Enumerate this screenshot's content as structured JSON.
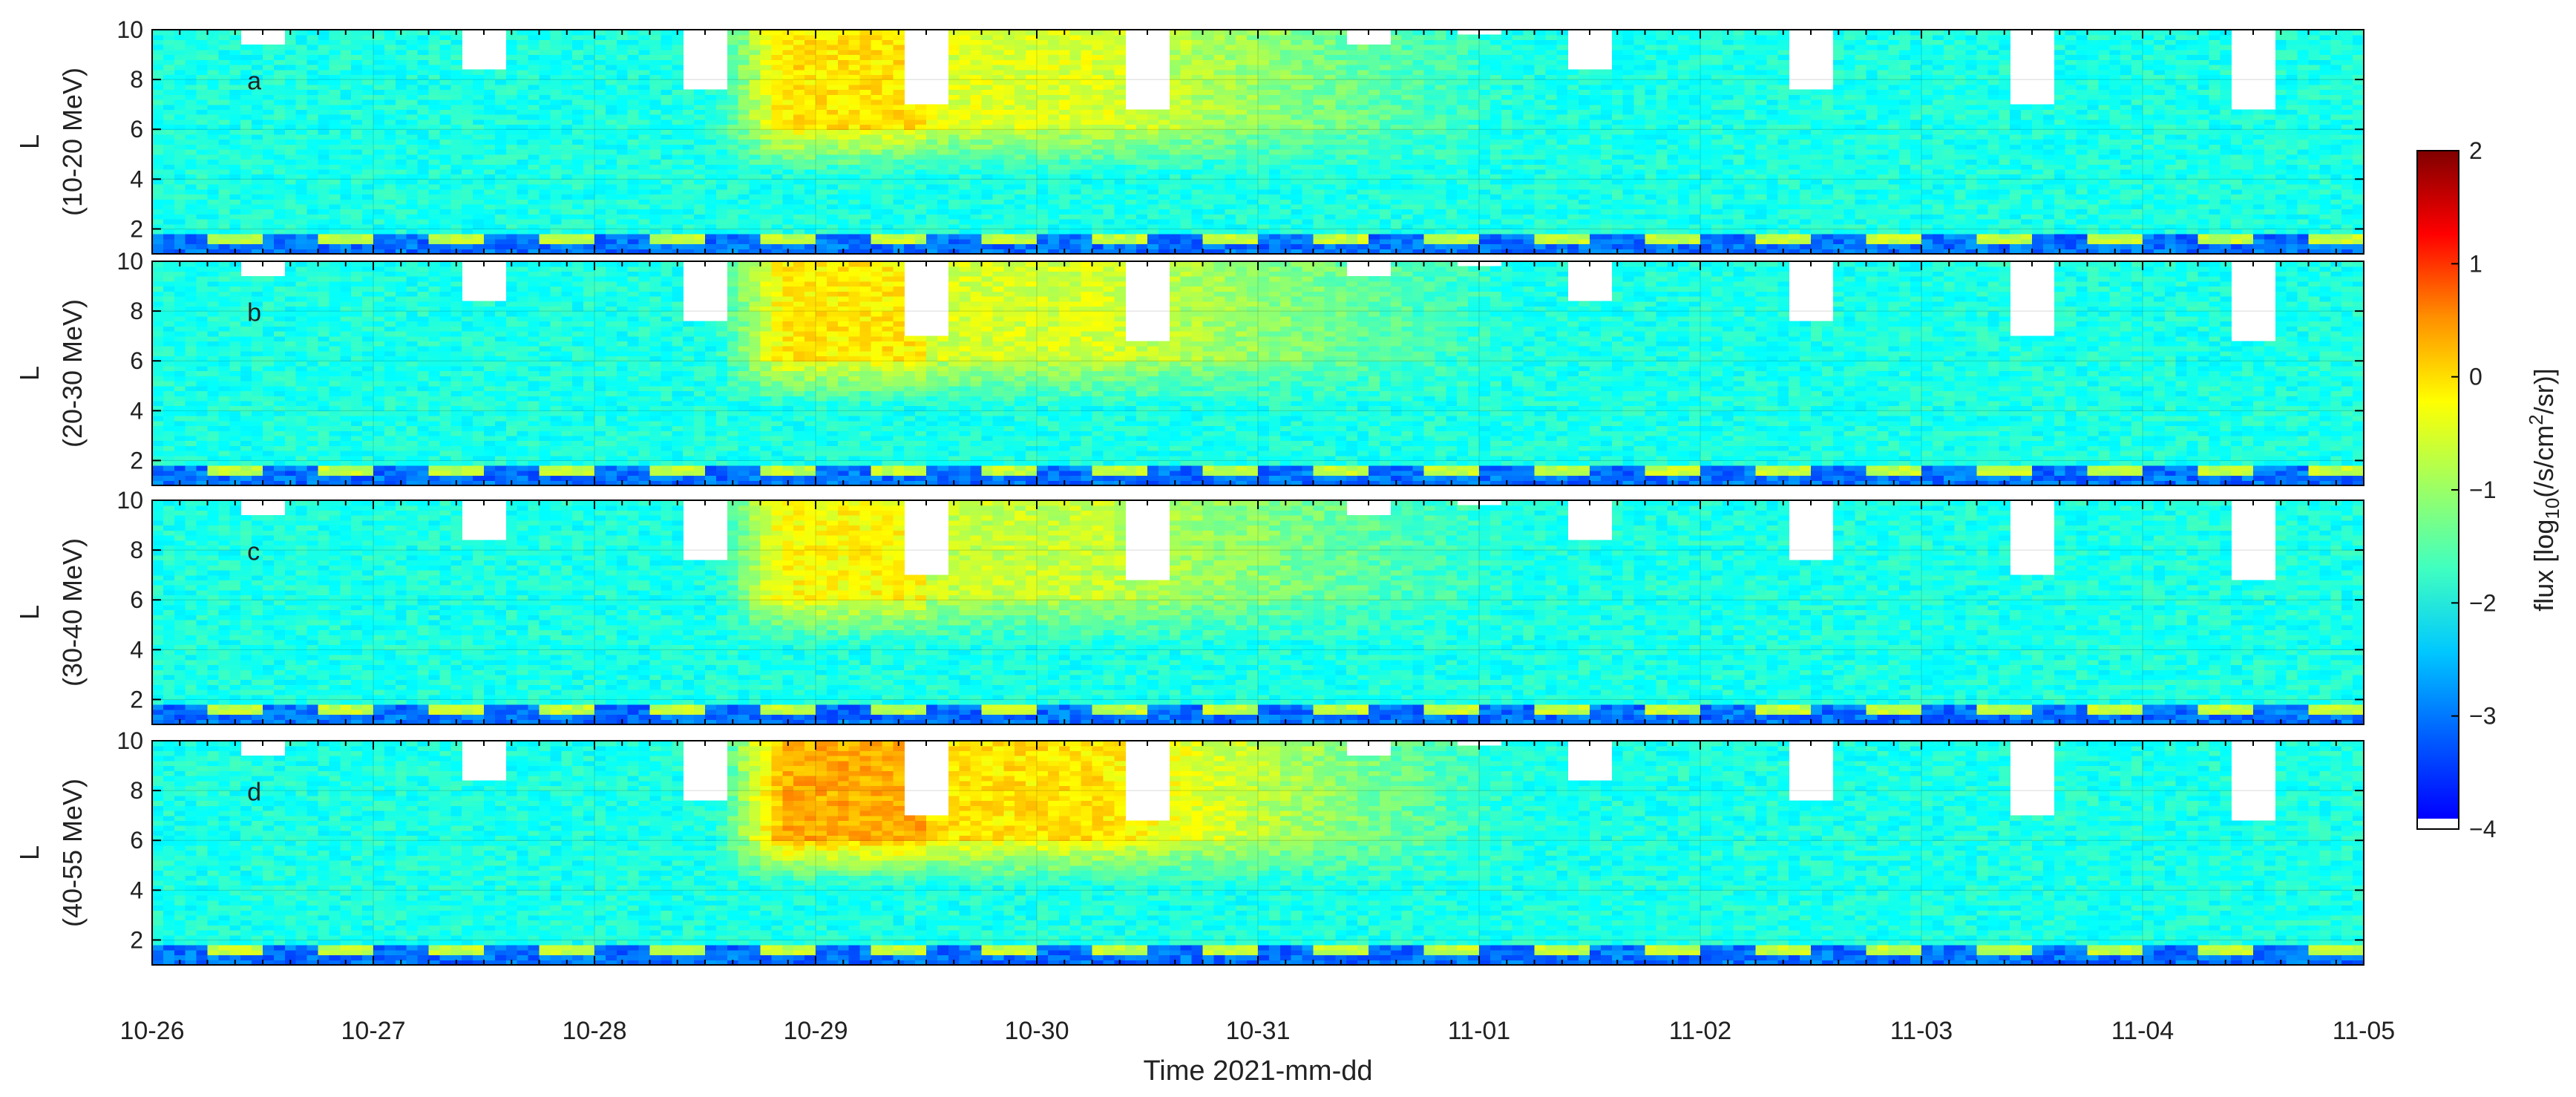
{
  "chart_data": {
    "type": "heatmap",
    "x_axis": {
      "label": "Time 2021-mm-dd",
      "tick_labels": [
        "10-26",
        "10-27",
        "10-28",
        "10-29",
        "10-30",
        "10-31",
        "11-01",
        "11-02",
        "11-03",
        "11-04",
        "11-05"
      ],
      "range_days": [
        0,
        10
      ]
    },
    "y_axis": {
      "label": "L",
      "range": [
        1,
        10
      ],
      "tick_values": [
        2,
        4,
        6,
        8,
        10
      ],
      "tick_labels": [
        "2",
        "4",
        "6",
        "8",
        "10"
      ]
    },
    "panels": [
      {
        "letter": "a",
        "energy": "(10-20 MeV)",
        "peak_log_flux": -0.1
      },
      {
        "letter": "b",
        "energy": "(20-30 MeV)",
        "peak_log_flux": -0.15
      },
      {
        "letter": "c",
        "energy": "(30-40 MeV)",
        "peak_log_flux": -0.25
      },
      {
        "letter": "d",
        "energy": "(40-55 MeV)",
        "peak_log_flux": 0.25
      }
    ],
    "colorbar": {
      "label_prefix": "flux [log",
      "label_sub": "10",
      "label_mid": "(/s/cm",
      "label_sup": "2",
      "label_suffix": "/sr)]",
      "range": [
        -4,
        2
      ],
      "tick_values": [
        2,
        1,
        0,
        -1,
        -2,
        -3,
        -4
      ],
      "tick_labels": [
        "2",
        "1",
        "0",
        "−1",
        "−2",
        "−3",
        "−4"
      ]
    },
    "data_gaps": [
      {
        "day": 0.5,
        "L_from": 9.3,
        "L_to": 10
      },
      {
        "day": 1.5,
        "L_from": 8.3,
        "L_to": 10
      },
      {
        "day": 2.5,
        "L_from": 7.6,
        "L_to": 10
      },
      {
        "day": 3.5,
        "L_from": 6.9,
        "L_to": 10
      },
      {
        "day": 4.5,
        "L_from": 6.7,
        "L_to": 10
      },
      {
        "day": 5.5,
        "L_from": 9.3,
        "L_to": 10
      },
      {
        "day": 6.0,
        "L_from": 9.7,
        "L_to": 10
      },
      {
        "day": 6.5,
        "L_from": 8.4,
        "L_to": 10
      },
      {
        "day": 7.5,
        "L_from": 7.5,
        "L_to": 10
      },
      {
        "day": 8.5,
        "L_from": 6.9,
        "L_to": 10
      },
      {
        "day": 9.5,
        "L_from": 6.7,
        "L_to": 10
      }
    ],
    "notes": "Flux enhancement (yellow/orange) at L>4 from ~10-28 12:00 to ~10-31; background flux ~ -1.5 to -2 log10 units."
  }
}
